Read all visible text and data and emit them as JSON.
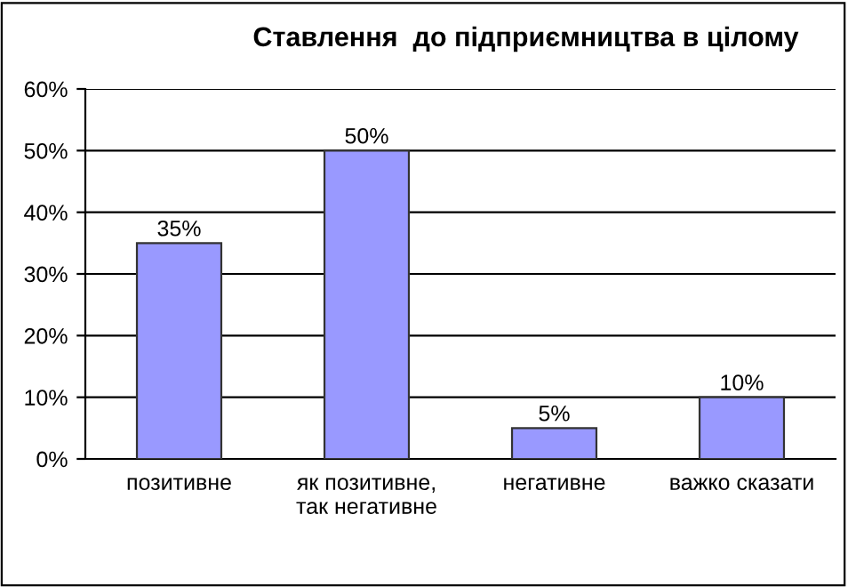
{
  "chart_data": {
    "type": "bar",
    "title": "Ставлення  до підприємництва в цілому",
    "categories": [
      "позитивне",
      "як позитивне,\nтак негативне",
      "негативне",
      "важко сказати"
    ],
    "values": [
      35,
      50,
      5,
      10
    ],
    "color": "#9999ff",
    "value_labels": [
      "35%",
      "50%",
      "5%",
      "10%"
    ],
    "ylim": [
      0,
      60
    ],
    "yticks": [
      {
        "value": 0,
        "label": "0%"
      },
      {
        "value": 10,
        "label": "10%"
      },
      {
        "value": 20,
        "label": "20%"
      },
      {
        "value": 30,
        "label": "30%"
      },
      {
        "value": 40,
        "label": "40%"
      },
      {
        "value": 50,
        "label": "50%"
      },
      {
        "value": 60,
        "label": "60%"
      }
    ],
    "grid": "y"
  }
}
